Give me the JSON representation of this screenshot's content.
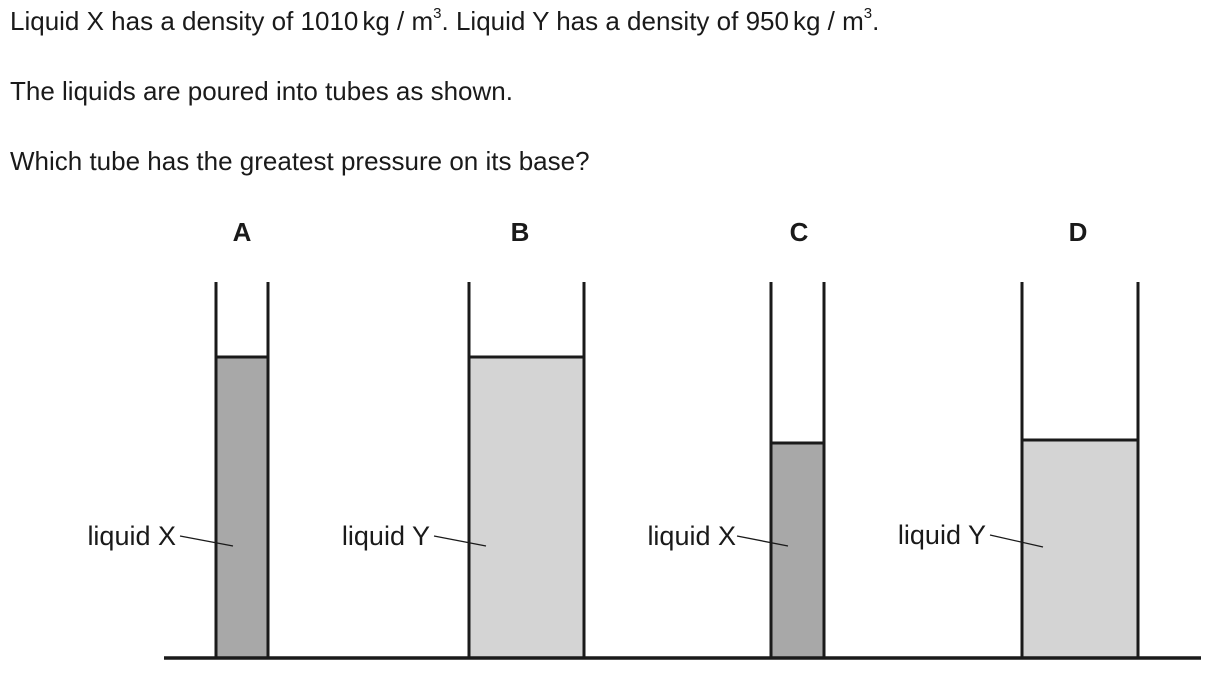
{
  "question": {
    "line1": {
      "x_text": "Liquid X has a density of",
      "x_density": "1010",
      "y_text": "Liquid Y has a density of",
      "y_density": "950",
      "unit": "kg / m",
      "exponent": "3"
    },
    "line2": "The liquids are poured into tubes as shown.",
    "line3": "Which tube has the greatest pressure on its base?"
  },
  "colors": {
    "liquid_x": "#a8a8a8",
    "liquid_y": "#d4d4d4",
    "outline": "#1a1a1a"
  },
  "tubes": [
    {
      "letter": "A",
      "liquid_label": "liquid X",
      "liquid": "X"
    },
    {
      "letter": "B",
      "liquid_label": "liquid Y",
      "liquid": "Y"
    },
    {
      "letter": "C",
      "liquid_label": "liquid X",
      "liquid": "X"
    },
    {
      "letter": "D",
      "liquid_label": "liquid Y",
      "liquid": "Y"
    }
  ]
}
